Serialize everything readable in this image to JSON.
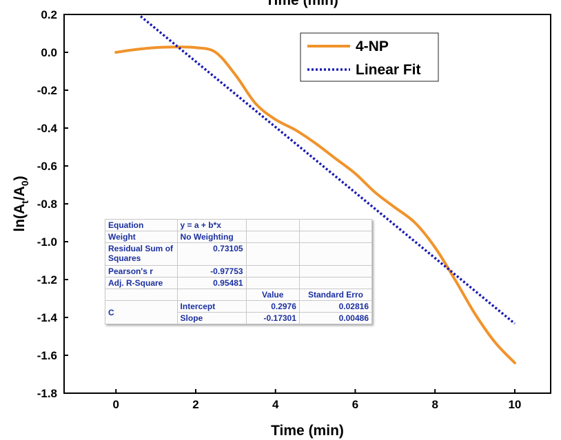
{
  "chart_data": {
    "type": "line",
    "top_label": "Time (min)",
    "xlabel": "Time (min)",
    "ylabel": {
      "base": "ln(A",
      "sub1": "t",
      "mid": "/A",
      "sub2": "0",
      "end": ")"
    },
    "xlim": [
      -1.3,
      10.9
    ],
    "ylim": [
      -1.8,
      0.2
    ],
    "x_ticks": [
      0,
      2,
      4,
      6,
      8,
      10
    ],
    "y_ticks": [
      0.2,
      0.0,
      -0.2,
      -0.4,
      -0.6,
      -0.8,
      -1.0,
      -1.2,
      -1.4,
      -1.6,
      -1.8
    ],
    "y_tick_labels": [
      "0.2",
      "0.0",
      "-0.2",
      "-0.4",
      "-0.6",
      "-0.8",
      "-1.0",
      "-1.2",
      "-1.4",
      "-1.6",
      "-1.8"
    ],
    "legend_position": "top-right",
    "series": [
      {
        "name": "4-NP",
        "style": "solid",
        "color": "#f0932b",
        "x": [
          0,
          0.5,
          1,
          1.5,
          2,
          2.5,
          3,
          3.5,
          4,
          4.5,
          5,
          5.5,
          6,
          6.5,
          7,
          7.5,
          8,
          8.5,
          9,
          9.5,
          10
        ],
        "y": [
          0.0,
          0.015,
          0.025,
          0.028,
          0.025,
          0.0,
          -0.12,
          -0.27,
          -0.355,
          -0.41,
          -0.48,
          -0.56,
          -0.64,
          -0.74,
          -0.82,
          -0.9,
          -1.03,
          -1.2,
          -1.38,
          -1.53,
          -1.64
        ]
      },
      {
        "name": "Linear Fit",
        "style": "dotted",
        "color": "#1a1ab4",
        "intercept": 0.2976,
        "slope": -0.17301,
        "x_range": [
          0.62,
          10
        ]
      }
    ],
    "fit_table": {
      "rows": [
        [
          "Equation",
          "y = a + b*x",
          "",
          ""
        ],
        [
          "Weight",
          "No Weighting",
          "",
          ""
        ],
        [
          "Residual Sum of Squares",
          "0.73105",
          "",
          ""
        ],
        [
          "Pearson's r",
          "-0.97753",
          "",
          ""
        ],
        [
          "Adj. R-Square",
          "0.95481",
          "",
          ""
        ]
      ],
      "header": [
        "",
        "",
        "Value",
        "Standard Erro"
      ],
      "group_label": "C",
      "params": [
        [
          "Intercept",
          "0.2976",
          "0.02816"
        ],
        [
          "Slope",
          "-0.17301",
          "0.00486"
        ]
      ]
    }
  }
}
